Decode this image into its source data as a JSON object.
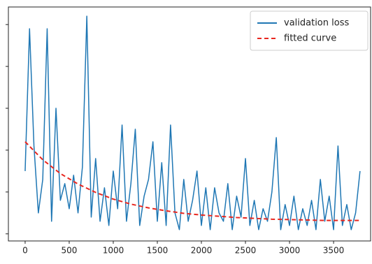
{
  "chart_data": {
    "type": "line",
    "xlim": [
      -190,
      3920
    ],
    "ylim": [
      -0.17,
      5.42
    ],
    "xticks": [
      0,
      500,
      1000,
      1500,
      2000,
      2500,
      3000,
      3500
    ],
    "yticks": [
      0,
      1,
      2,
      3,
      4,
      5
    ],
    "legend": "upper right",
    "series": [
      {
        "name": "validation loss",
        "color": "#1f77b4",
        "dash": false,
        "x": [
          0,
          50,
          100,
          150,
          200,
          250,
          300,
          350,
          400,
          450,
          500,
          550,
          600,
          650,
          700,
          750,
          800,
          850,
          900,
          950,
          1000,
          1050,
          1100,
          1150,
          1200,
          1250,
          1300,
          1350,
          1400,
          1450,
          1500,
          1550,
          1600,
          1650,
          1700,
          1750,
          1800,
          1850,
          1900,
          1950,
          2000,
          2050,
          2100,
          2150,
          2200,
          2250,
          2300,
          2350,
          2400,
          2450,
          2500,
          2550,
          2600,
          2650,
          2700,
          2750,
          2800,
          2850,
          2900,
          2950,
          3000,
          3050,
          3100,
          3150,
          3200,
          3250,
          3300,
          3350,
          3400,
          3450,
          3500,
          3550,
          3600,
          3650,
          3700,
          3750,
          3800
        ],
        "values": [
          1.5,
          4.9,
          2.1,
          0.5,
          1.3,
          4.9,
          0.3,
          3.0,
          0.8,
          1.2,
          0.6,
          1.4,
          0.5,
          1.6,
          5.2,
          0.4,
          1.8,
          0.3,
          1.1,
          0.2,
          1.5,
          0.6,
          2.6,
          0.3,
          1.2,
          2.5,
          0.2,
          0.9,
          1.3,
          2.2,
          0.3,
          1.7,
          0.2,
          2.6,
          0.5,
          0.1,
          1.3,
          0.3,
          0.8,
          1.5,
          0.2,
          1.1,
          0.1,
          1.1,
          0.5,
          0.3,
          1.2,
          0.1,
          0.9,
          0.4,
          1.8,
          0.2,
          0.8,
          0.1,
          0.6,
          0.3,
          1.0,
          2.3,
          0.1,
          0.7,
          0.2,
          0.9,
          0.1,
          0.6,
          0.2,
          0.8,
          0.1,
          1.3,
          0.3,
          0.9,
          0.1,
          2.1,
          0.2,
          0.7,
          0.1,
          0.5,
          1.5
        ]
      },
      {
        "name": "fitted curve",
        "color": "#e8271f",
        "dash": true,
        "x": [
          0,
          200,
          400,
          600,
          800,
          1000,
          1200,
          1400,
          1600,
          1800,
          2000,
          2200,
          2400,
          2600,
          2800,
          3000,
          3200,
          3400,
          3600,
          3800
        ],
        "values": [
          2.2,
          1.77,
          1.44,
          1.19,
          0.99,
          0.83,
          0.71,
          0.62,
          0.55,
          0.49,
          0.45,
          0.42,
          0.39,
          0.37,
          0.35,
          0.34,
          0.33,
          0.32,
          0.32,
          0.32
        ]
      }
    ]
  }
}
